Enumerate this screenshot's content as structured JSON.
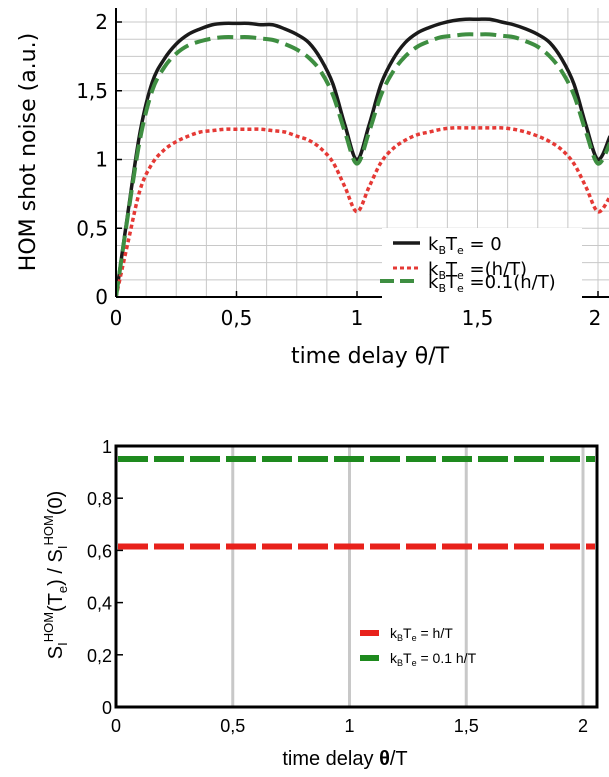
{
  "chart_data": [
    {
      "type": "line",
      "ylabel": "HOM shot noise (a.u.)",
      "xlabel": "time delay θ/T",
      "xlim": [
        0,
        2.05
      ],
      "ylim": [
        0,
        2.12
      ],
      "xticks": [
        "0",
        "0,5",
        "1",
        "1,5",
        "2"
      ],
      "yticks": [
        "0",
        "0,5",
        "1",
        "1,5",
        "2"
      ],
      "grid": true,
      "legend_position": "bottom-right",
      "series": [
        {
          "name": "kBTe = 0",
          "legend_parts": [
            "k",
            "B",
            "T",
            "e",
            " = 0"
          ],
          "color": "#1a1a1a",
          "style": "solid",
          "x": [
            0,
            0.05,
            0.1,
            0.15,
            0.2,
            0.25,
            0.3,
            0.35,
            0.4,
            0.45,
            0.5,
            0.55,
            0.6,
            0.65,
            0.7,
            0.75,
            0.8,
            0.85,
            0.9,
            0.95,
            1.0,
            1.05,
            1.1,
            1.15,
            1.2,
            1.25,
            1.3,
            1.35,
            1.4,
            1.45,
            1.5,
            1.55,
            1.6,
            1.65,
            1.7,
            1.75,
            1.8,
            1.85,
            1.9,
            1.95,
            2.0,
            2.05
          ],
          "y": [
            0,
            0.62,
            1.2,
            1.56,
            1.73,
            1.84,
            1.91,
            1.95,
            1.98,
            1.99,
            1.99,
            1.99,
            1.98,
            1.98,
            1.95,
            1.91,
            1.85,
            1.73,
            1.55,
            1.25,
            1.0,
            1.25,
            1.55,
            1.73,
            1.85,
            1.92,
            1.96,
            1.99,
            2.01,
            2.02,
            2.02,
            2.02,
            2.0,
            1.98,
            1.95,
            1.91,
            1.85,
            1.73,
            1.55,
            1.25,
            1.0,
            1.17
          ]
        },
        {
          "name": "kBTe =(h/T)",
          "legend_parts": [
            "k",
            "B",
            "T",
            "e",
            " =(h/T)"
          ],
          "color": "#e53935",
          "style": "dotted",
          "x": [
            0,
            0.05,
            0.1,
            0.15,
            0.2,
            0.25,
            0.3,
            0.35,
            0.4,
            0.45,
            0.5,
            0.55,
            0.6,
            0.65,
            0.7,
            0.75,
            0.8,
            0.85,
            0.9,
            0.95,
            1.0,
            1.05,
            1.1,
            1.15,
            1.2,
            1.25,
            1.3,
            1.35,
            1.4,
            1.45,
            1.5,
            1.55,
            1.6,
            1.65,
            1.7,
            1.75,
            1.8,
            1.85,
            1.9,
            1.95,
            2.0,
            2.05
          ],
          "y": [
            0,
            0.4,
            0.78,
            0.97,
            1.07,
            1.13,
            1.17,
            1.2,
            1.21,
            1.22,
            1.22,
            1.22,
            1.22,
            1.21,
            1.2,
            1.17,
            1.14,
            1.08,
            0.98,
            0.8,
            0.62,
            0.8,
            0.98,
            1.08,
            1.14,
            1.18,
            1.2,
            1.22,
            1.23,
            1.23,
            1.23,
            1.23,
            1.23,
            1.22,
            1.2,
            1.17,
            1.13,
            1.07,
            0.97,
            0.8,
            0.62,
            0.73
          ]
        },
        {
          "name": "kBTe =0.1(h/T)",
          "legend_parts": [
            "k",
            "B",
            "T",
            "e",
            " =0.1(h/T)"
          ],
          "color": "#3e8e41",
          "style": "dashed",
          "x": [
            0,
            0.05,
            0.1,
            0.15,
            0.2,
            0.25,
            0.3,
            0.35,
            0.4,
            0.45,
            0.5,
            0.55,
            0.6,
            0.65,
            0.7,
            0.75,
            0.8,
            0.85,
            0.9,
            0.95,
            1.0,
            1.05,
            1.1,
            1.15,
            1.2,
            1.25,
            1.3,
            1.35,
            1.4,
            1.45,
            1.5,
            1.55,
            1.6,
            1.65,
            1.7,
            1.75,
            1.8,
            1.85,
            1.9,
            1.95,
            2.0,
            2.05
          ],
          "y": [
            0,
            0.6,
            1.15,
            1.5,
            1.67,
            1.77,
            1.83,
            1.86,
            1.88,
            1.89,
            1.89,
            1.89,
            1.88,
            1.87,
            1.84,
            1.8,
            1.74,
            1.64,
            1.47,
            1.2,
            0.97,
            1.2,
            1.47,
            1.64,
            1.75,
            1.82,
            1.86,
            1.89,
            1.9,
            1.91,
            1.91,
            1.91,
            1.9,
            1.89,
            1.86,
            1.82,
            1.75,
            1.64,
            1.47,
            1.2,
            0.97,
            1.12
          ]
        }
      ]
    },
    {
      "type": "line",
      "ylabel_parts": [
        "S",
        "I",
        "HOM",
        "(T",
        "e",
        ") / S",
        "I",
        "HOM",
        "(0)"
      ],
      "xlabel_parts": [
        "time delay ",
        "θ",
        "/T"
      ],
      "xlim": [
        0,
        2.05
      ],
      "ylim": [
        0,
        1.0
      ],
      "xticks": [
        "0",
        "0,5",
        "1",
        "1,5",
        "2"
      ],
      "yticks": [
        "0",
        "0,2",
        "0,4",
        "0,6",
        "0,8",
        "1"
      ],
      "grid": true,
      "legend_position": "bottom-right",
      "series": [
        {
          "name": "kBTe = h/T",
          "legend_parts": [
            "k",
            "B",
            "T",
            "e",
            " = h/T"
          ],
          "color": "#e8211b",
          "style": "dashed",
          "x": [
            0,
            2.05
          ],
          "y": [
            0.615,
            0.615
          ]
        },
        {
          "name": "kBTe = 0.1 h/T",
          "legend_parts": [
            "k",
            "B",
            "T",
            "e",
            " = 0.1 h/T"
          ],
          "color": "#1e8a1e",
          "style": "dashed",
          "x": [
            0,
            2.05
          ],
          "y": [
            0.95,
            0.95
          ]
        }
      ]
    }
  ]
}
